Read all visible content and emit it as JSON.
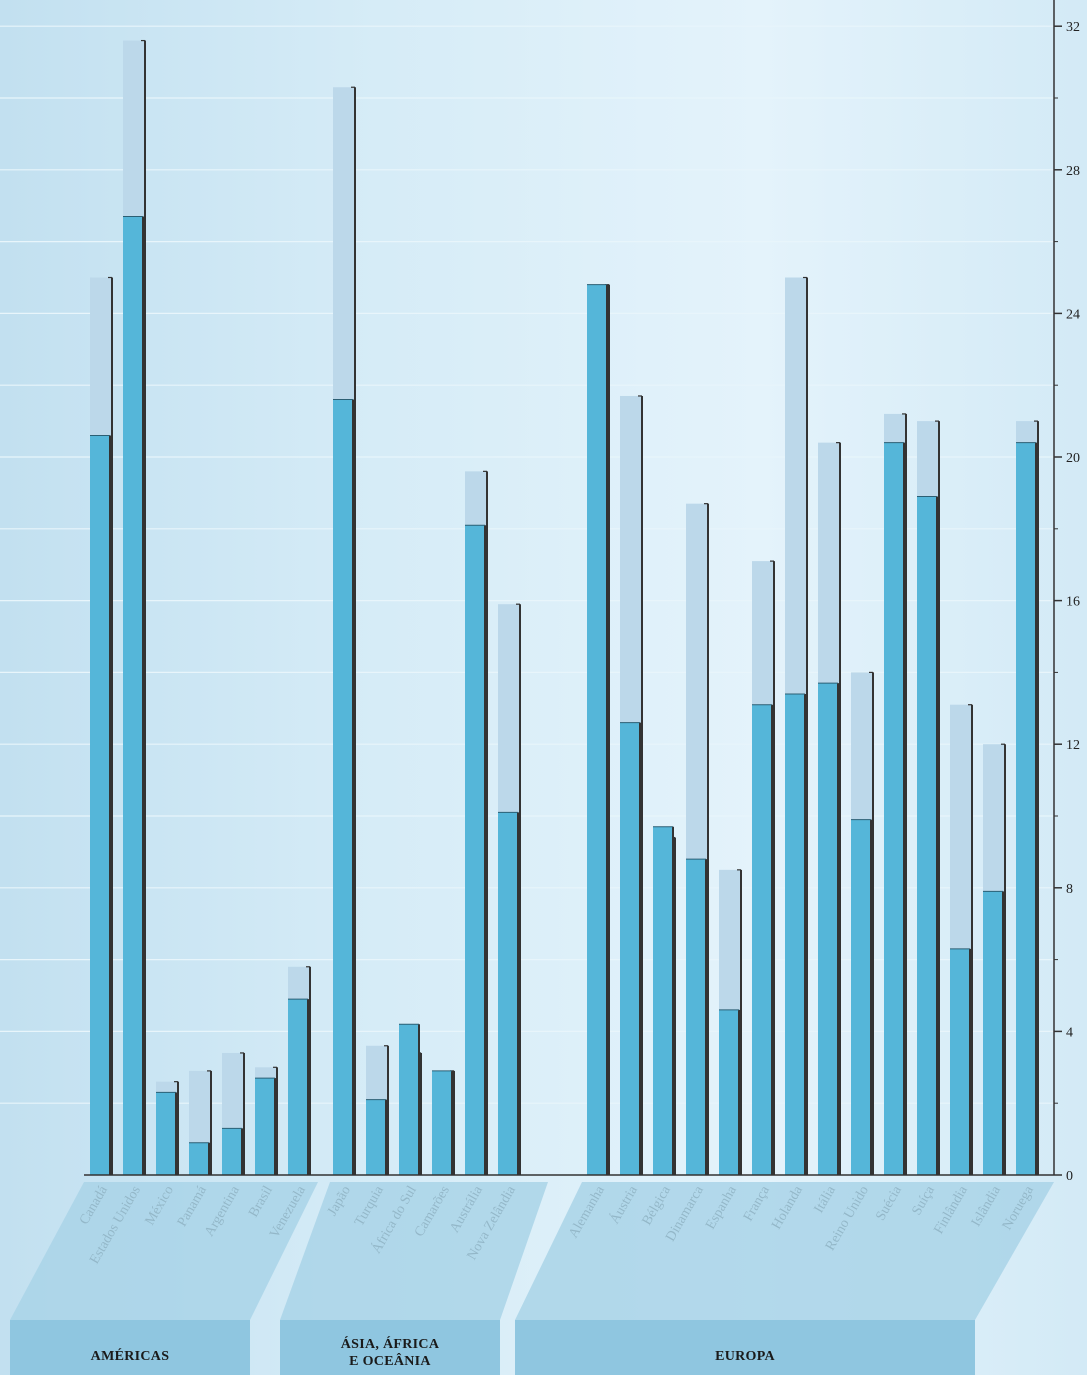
{
  "chart_data": {
    "type": "bar",
    "title": "",
    "xlabel": "",
    "ylabel": "",
    "ylim": [
      0,
      32
    ],
    "y_ticks": [
      "0",
      "4",
      "8",
      "12",
      "16",
      "20",
      "24",
      "28",
      "32"
    ],
    "y_axis_position": "right",
    "grid": true,
    "colors": {
      "primary": "#55b6d9",
      "secondary": "#bcd8ea",
      "axis": "#333333"
    },
    "groups": [
      {
        "name": "AMÉRICAS",
        "categories": [
          "Canadá",
          "Estados Unidos",
          "México",
          "Panamá",
          "Argentina",
          "Brasil",
          "Venezuela"
        ]
      },
      {
        "name": "ÁSIA, ÁFRICA E OCEÂNIA",
        "categories": [
          "Japão",
          "Turquia",
          "África do Sul",
          "Camarões",
          "Austrália",
          "Nova Zelândia"
        ]
      },
      {
        "name": "EUROPA",
        "categories": [
          "Alemanha",
          "Áustria",
          "Bélgica",
          "Dinamarca",
          "Espanha",
          "França",
          "Holanda",
          "Itália",
          "Reino Unido",
          "Suécia",
          "Suíça",
          "Finlândia",
          "Islândia",
          "Noruega"
        ]
      }
    ],
    "categories": [
      "Canadá",
      "Estados Unidos",
      "México",
      "Panamá",
      "Argentina",
      "Brasil",
      "Venezuela",
      "Japão",
      "Turquia",
      "África do Sul",
      "Camarões",
      "Austrália",
      "Nova Zelândia",
      "Alemanha",
      "Áustria",
      "Bélgica",
      "Dinamarca",
      "Espanha",
      "França",
      "Holanda",
      "Itália",
      "Reino Unido",
      "Suécia",
      "Suíça",
      "Finlândia",
      "Islândia",
      "Noruega"
    ],
    "series": [
      {
        "values": [
          20.6,
          26.7,
          2.3,
          0.9,
          1.3,
          2.7,
          4.9,
          21.6,
          2.1,
          4.2,
          2.9,
          18.1,
          10.1,
          24.8,
          12.6,
          9.7,
          8.8,
          4.6,
          13.1,
          13.4,
          13.7,
          9.9,
          20.4,
          18.9,
          6.3,
          7.9,
          20.4
        ]
      },
      {
        "values": [
          25.0,
          31.6,
          2.6,
          2.9,
          3.4,
          3.0,
          5.8,
          30.3,
          3.6,
          3.4,
          2.9,
          19.6,
          15.9,
          24.8,
          21.7,
          9.4,
          18.7,
          8.5,
          17.1,
          25.0,
          20.4,
          14.0,
          21.2,
          21.0,
          13.1,
          12.0,
          21.0
        ]
      }
    ]
  }
}
